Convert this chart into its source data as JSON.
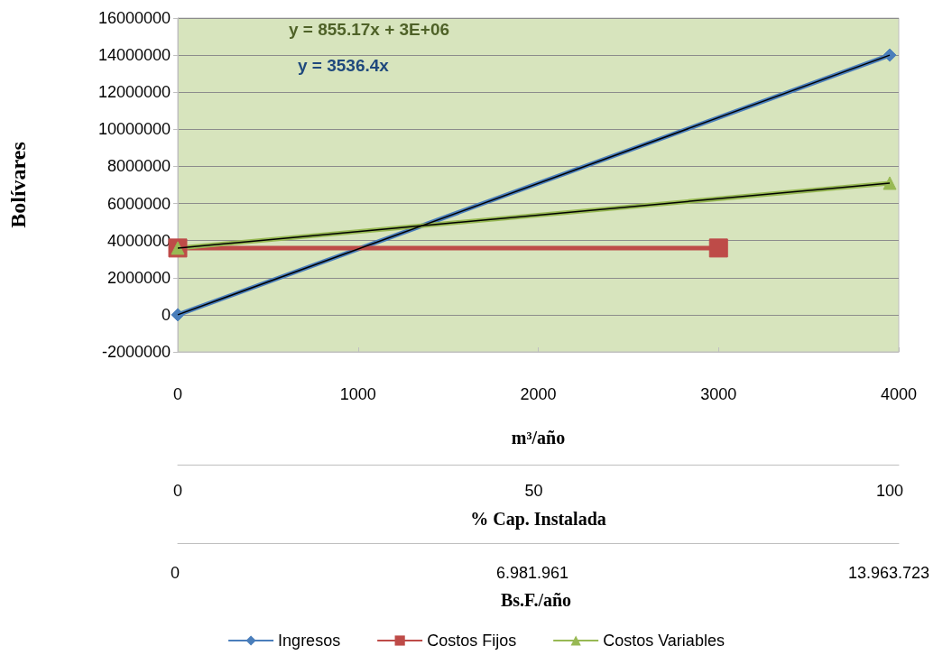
{
  "chart_data": {
    "type": "line",
    "ylabel": "Bolívares",
    "xlabel": "m³/año",
    "x2label": "% Cap. Instalada",
    "xlim": [
      0,
      4000
    ],
    "xticks": [
      0,
      1000,
      2000,
      3000,
      4000
    ],
    "ylim": [
      -2000000,
      16000000
    ],
    "yticks": [
      -2000000,
      0,
      2000000,
      4000000,
      6000000,
      8000000,
      10000000,
      12000000,
      14000000,
      16000000
    ],
    "x2lim": [
      0,
      101.27
    ],
    "x2ticks": [
      0,
      50,
      100
    ],
    "series": [
      {
        "name": "Ingresos",
        "color": "#4a7ebb",
        "marker": "diamond",
        "x": [
          0,
          3950
        ],
        "values": [
          0,
          14000000
        ]
      },
      {
        "name": "Costos Fijos",
        "color": "#be4b48",
        "marker": "square",
        "x": [
          0,
          3000
        ],
        "values": [
          3600000,
          3600000
        ]
      },
      {
        "name": "Costos Variables",
        "color": "#98b954",
        "marker": "triangle",
        "x": [
          0,
          3950
        ],
        "values": [
          3600000,
          7100000
        ]
      },
      {
        "type": "line",
        "color": "#000000",
        "marker": "none",
        "x": [
          0,
          3950
        ],
        "values": [
          0,
          14000000
        ]
      },
      {
        "type": "line",
        "color": "#000000",
        "marker": "none",
        "x": [
          0,
          3950
        ],
        "values": [
          3600000,
          7100000
        ]
      }
    ],
    "annotations": [
      "y = 855.17x + 3E+06",
      "y = 3536.4x",
      "0",
      "6.981.961",
      "13.963.723",
      "Bs.F./año"
    ],
    "grid": "y",
    "legend": "bottom"
  }
}
